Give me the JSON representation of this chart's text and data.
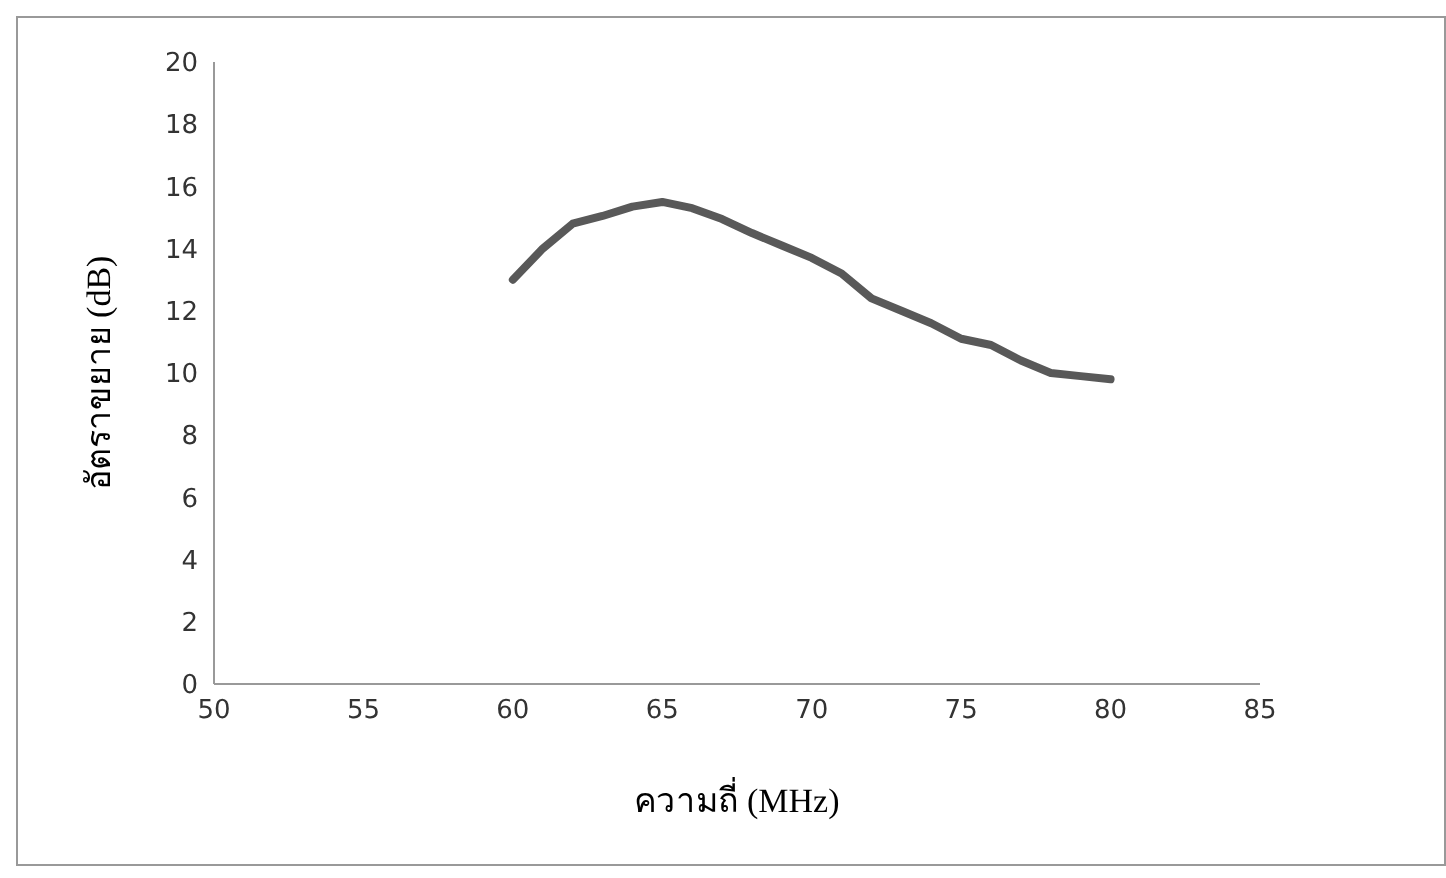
{
  "chart_data": {
    "type": "line",
    "xlabel": "ความถี่ (MHz)",
    "ylabel": "อัตราขยาย (dB)",
    "x": [
      60,
      61,
      62,
      63,
      64,
      65,
      66,
      67,
      68,
      69,
      70,
      71,
      72,
      73,
      74,
      75,
      76,
      77,
      78,
      79,
      80
    ],
    "series": [
      {
        "color": "#595959",
        "values": [
          13.0,
          14.0,
          14.8,
          15.05,
          15.35,
          15.5,
          15.3,
          14.95,
          14.5,
          14.1,
          13.7,
          13.2,
          12.4,
          12.0,
          11.6,
          11.1,
          10.9,
          10.4,
          10.0,
          9.9,
          9.8
        ]
      }
    ],
    "xlim": [
      50,
      85
    ],
    "xticks": [
      50,
      55,
      60,
      65,
      70,
      75,
      80,
      85
    ],
    "ylim": [
      0,
      20
    ],
    "yticks": [
      0,
      2,
      4,
      6,
      8,
      10,
      12,
      14,
      16,
      18,
      20
    ],
    "grid": false,
    "legend": false,
    "marker": "none",
    "line_style": "solid"
  }
}
